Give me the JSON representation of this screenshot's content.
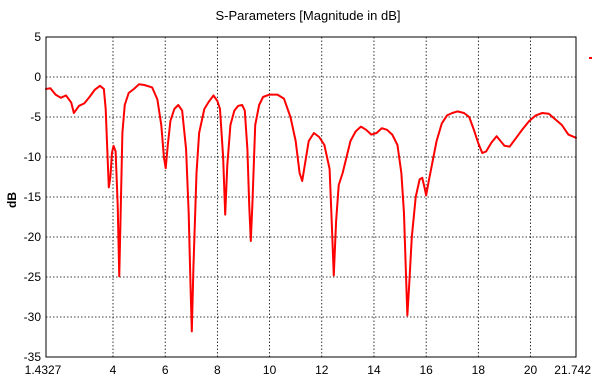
{
  "chart_data": {
    "type": "line",
    "title": "S-Parameters [Magnitude in dB]",
    "xlabel": "",
    "ylabel": "dB",
    "xlim": [
      1.4327,
      21.742
    ],
    "ylim": [
      -35,
      5
    ],
    "x_ticks": [
      1.4327,
      4,
      6,
      8,
      10,
      12,
      14,
      16,
      18,
      20,
      21.742
    ],
    "x_tick_labels": [
      "1.4327",
      "4",
      "6",
      "8",
      "10",
      "12",
      "14",
      "16",
      "18",
      "20",
      "21.742"
    ],
    "y_ticks": [
      5,
      0,
      -5,
      -10,
      -15,
      -20,
      -25,
      -30,
      -35
    ],
    "grid": true,
    "legend": {
      "position": "right",
      "entries": [
        {
          "name": "",
          "color": "#ff0000"
        }
      ]
    },
    "series": [
      {
        "name": "",
        "color": "#ff0000",
        "points": [
          [
            1.4327,
            -1.5
          ],
          [
            1.6,
            -1.4
          ],
          [
            1.8,
            -2.2
          ],
          [
            2.0,
            -2.6
          ],
          [
            2.2,
            -2.3
          ],
          [
            2.4,
            -3.2
          ],
          [
            2.5,
            -4.5
          ],
          [
            2.7,
            -3.6
          ],
          [
            2.9,
            -3.3
          ],
          [
            3.1,
            -2.5
          ],
          [
            3.3,
            -1.6
          ],
          [
            3.5,
            -1.1
          ],
          [
            3.65,
            -1.5
          ],
          [
            3.72,
            -4.0
          ],
          [
            3.78,
            -9.0
          ],
          [
            3.84,
            -13.8
          ],
          [
            3.9,
            -12.5
          ],
          [
            3.96,
            -9.5
          ],
          [
            4.02,
            -8.6
          ],
          [
            4.1,
            -9.3
          ],
          [
            4.18,
            -16.0
          ],
          [
            4.24,
            -24.9
          ],
          [
            4.3,
            -16.0
          ],
          [
            4.36,
            -7.0
          ],
          [
            4.45,
            -3.5
          ],
          [
            4.6,
            -2.0
          ],
          [
            4.8,
            -1.5
          ],
          [
            5.0,
            -0.9
          ],
          [
            5.2,
            -1.0
          ],
          [
            5.5,
            -1.3
          ],
          [
            5.7,
            -2.8
          ],
          [
            5.85,
            -6.0
          ],
          [
            5.95,
            -10.0
          ],
          [
            6.02,
            -11.4
          ],
          [
            6.1,
            -8.5
          ],
          [
            6.2,
            -5.5
          ],
          [
            6.35,
            -4.0
          ],
          [
            6.5,
            -3.5
          ],
          [
            6.65,
            -4.2
          ],
          [
            6.8,
            -9.0
          ],
          [
            6.9,
            -17.0
          ],
          [
            6.97,
            -26.0
          ],
          [
            7.02,
            -31.8
          ],
          [
            7.08,
            -24.0
          ],
          [
            7.2,
            -12.0
          ],
          [
            7.3,
            -7.0
          ],
          [
            7.5,
            -4.0
          ],
          [
            7.65,
            -3.2
          ],
          [
            7.85,
            -2.3
          ],
          [
            8.0,
            -3.0
          ],
          [
            8.1,
            -4.0
          ],
          [
            8.22,
            -10.0
          ],
          [
            8.3,
            -17.2
          ],
          [
            8.38,
            -11.0
          ],
          [
            8.5,
            -6.0
          ],
          [
            8.65,
            -4.2
          ],
          [
            8.8,
            -3.6
          ],
          [
            8.95,
            -3.5
          ],
          [
            9.05,
            -4.2
          ],
          [
            9.15,
            -9.0
          ],
          [
            9.22,
            -16.0
          ],
          [
            9.28,
            -20.5
          ],
          [
            9.34,
            -16.0
          ],
          [
            9.45,
            -6.0
          ],
          [
            9.6,
            -3.5
          ],
          [
            9.75,
            -2.5
          ],
          [
            10.0,
            -2.2
          ],
          [
            10.3,
            -2.2
          ],
          [
            10.55,
            -2.7
          ],
          [
            10.8,
            -5.0
          ],
          [
            11.0,
            -8.0
          ],
          [
            11.15,
            -12.0
          ],
          [
            11.25,
            -13.0
          ],
          [
            11.35,
            -11.0
          ],
          [
            11.5,
            -8.0
          ],
          [
            11.7,
            -7.0
          ],
          [
            11.9,
            -7.5
          ],
          [
            12.1,
            -8.5
          ],
          [
            12.3,
            -11.5
          ],
          [
            12.38,
            -18.0
          ],
          [
            12.46,
            -24.8
          ],
          [
            12.55,
            -18.0
          ],
          [
            12.65,
            -13.5
          ],
          [
            12.8,
            -12.0
          ],
          [
            12.95,
            -10.0
          ],
          [
            13.1,
            -8.0
          ],
          [
            13.3,
            -6.8
          ],
          [
            13.5,
            -6.2
          ],
          [
            13.7,
            -6.6
          ],
          [
            13.9,
            -7.2
          ],
          [
            14.1,
            -7.0
          ],
          [
            14.3,
            -6.4
          ],
          [
            14.5,
            -6.6
          ],
          [
            14.7,
            -7.2
          ],
          [
            14.9,
            -8.5
          ],
          [
            15.05,
            -12.0
          ],
          [
            15.15,
            -17.0
          ],
          [
            15.22,
            -24.0
          ],
          [
            15.28,
            -29.8
          ],
          [
            15.35,
            -26.0
          ],
          [
            15.45,
            -20.0
          ],
          [
            15.6,
            -15.0
          ],
          [
            15.75,
            -12.8
          ],
          [
            15.85,
            -12.6
          ],
          [
            15.95,
            -14.0
          ],
          [
            16.0,
            -14.8
          ],
          [
            16.1,
            -13.0
          ],
          [
            16.25,
            -10.5
          ],
          [
            16.4,
            -8.0
          ],
          [
            16.6,
            -5.8
          ],
          [
            16.8,
            -4.8
          ],
          [
            17.0,
            -4.5
          ],
          [
            17.2,
            -4.3
          ],
          [
            17.45,
            -4.5
          ],
          [
            17.65,
            -5.0
          ],
          [
            17.85,
            -6.8
          ],
          [
            18.0,
            -8.3
          ],
          [
            18.15,
            -9.5
          ],
          [
            18.3,
            -9.3
          ],
          [
            18.5,
            -8.2
          ],
          [
            18.7,
            -7.4
          ],
          [
            18.85,
            -8.0
          ],
          [
            19.0,
            -8.6
          ],
          [
            19.2,
            -8.7
          ],
          [
            19.45,
            -7.6
          ],
          [
            19.7,
            -6.5
          ],
          [
            19.95,
            -5.5
          ],
          [
            20.2,
            -4.8
          ],
          [
            20.45,
            -4.5
          ],
          [
            20.7,
            -4.6
          ],
          [
            20.95,
            -5.3
          ],
          [
            21.2,
            -6.0
          ],
          [
            21.45,
            -7.2
          ],
          [
            21.742,
            -7.6
          ]
        ]
      }
    ]
  }
}
